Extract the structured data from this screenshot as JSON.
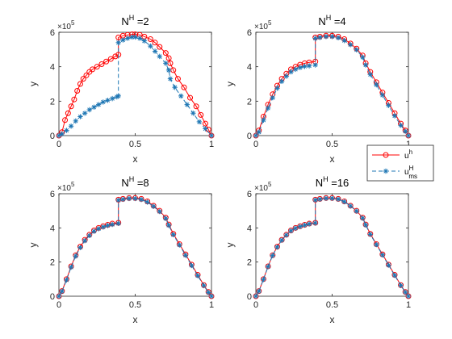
{
  "figure": {
    "exponent_base": "×10",
    "exponent_power": "5"
  },
  "legend": {
    "entries": [
      {
        "base": "u",
        "sup": "h",
        "sub": "",
        "color": "#ff0000",
        "marker": "circle",
        "line": "solid"
      },
      {
        "base": "u",
        "sup": "H",
        "sub": "ms",
        "color": "#1f77b4",
        "marker": "asterisk",
        "line": "dashed"
      }
    ]
  },
  "chart_data": [
    {
      "type": "line",
      "title": {
        "base": "N",
        "sup": "H",
        "rest": " =2"
      },
      "xlabel": "x",
      "ylabel": "y",
      "xlim": [
        0,
        1
      ],
      "ylim": [
        0,
        600000
      ],
      "xticks": [
        "0",
        "0.5",
        "1"
      ],
      "yticks": [
        "0",
        "2",
        "4",
        "6"
      ],
      "series": [
        {
          "name": "u^h",
          "color": "#ff0000",
          "x": [
            0.0,
            0.02,
            0.04,
            0.06,
            0.08,
            0.1,
            0.12,
            0.14,
            0.16,
            0.18,
            0.2,
            0.22,
            0.25,
            0.28,
            0.31,
            0.34,
            0.37,
            0.39,
            0.39,
            0.42,
            0.45,
            0.48,
            0.5,
            0.53,
            0.56,
            0.6,
            0.63,
            0.66,
            0.7,
            0.72,
            0.73,
            0.75,
            0.78,
            0.82,
            0.86,
            0.9,
            0.93,
            0.96,
            0.98,
            1.0
          ],
          "y": [
            0,
            20000,
            90000,
            130000,
            170000,
            210000,
            260000,
            300000,
            330000,
            350000,
            370000,
            385000,
            400000,
            415000,
            430000,
            445000,
            460000,
            470000,
            570000,
            580000,
            585000,
            588000,
            588000,
            585000,
            575000,
            560000,
            540000,
            515000,
            480000,
            450000,
            420000,
            380000,
            330000,
            280000,
            220000,
            170000,
            120000,
            70000,
            35000,
            0
          ]
        },
        {
          "name": "u^H_ms",
          "color": "#1f77b4",
          "x": [
            0.0,
            0.02,
            0.05,
            0.08,
            0.11,
            0.14,
            0.17,
            0.2,
            0.23,
            0.26,
            0.29,
            0.32,
            0.35,
            0.38,
            0.39,
            0.39,
            0.42,
            0.45,
            0.48,
            0.5,
            0.53,
            0.56,
            0.6,
            0.63,
            0.66,
            0.7,
            0.72,
            0.73,
            0.76,
            0.8,
            0.84,
            0.88,
            0.92,
            0.96,
            1.0
          ],
          "y": [
            0,
            10000,
            30000,
            55000,
            85000,
            110000,
            130000,
            150000,
            165000,
            180000,
            195000,
            205000,
            215000,
            225000,
            230000,
            540000,
            555000,
            565000,
            572000,
            572000,
            565000,
            550000,
            520000,
            490000,
            460000,
            420000,
            380000,
            330000,
            280000,
            230000,
            180000,
            130000,
            80000,
            40000,
            0
          ]
        }
      ]
    },
    {
      "type": "line",
      "title": {
        "base": "N",
        "sup": "H",
        "rest": " =4"
      },
      "xlabel": "x",
      "ylabel": "y",
      "xlim": [
        0,
        1
      ],
      "ylim": [
        0,
        600000
      ],
      "xticks": [
        "0",
        "0.5",
        "1"
      ],
      "yticks": [
        "0",
        "2",
        "4",
        "6"
      ],
      "series": [
        {
          "name": "u^h",
          "color": "#ff0000",
          "x": [
            0.0,
            0.02,
            0.05,
            0.08,
            0.11,
            0.14,
            0.17,
            0.2,
            0.23,
            0.26,
            0.29,
            0.32,
            0.35,
            0.39,
            0.39,
            0.42,
            0.46,
            0.5,
            0.54,
            0.58,
            0.62,
            0.66,
            0.7,
            0.72,
            0.75,
            0.79,
            0.83,
            0.87,
            0.91,
            0.95,
            0.98,
            1.0
          ],
          "y": [
            0,
            30000,
            110000,
            180000,
            240000,
            290000,
            330000,
            360000,
            385000,
            400000,
            412000,
            420000,
            425000,
            430000,
            570000,
            575000,
            580000,
            580000,
            575000,
            560000,
            535000,
            505000,
            465000,
            420000,
            370000,
            310000,
            250000,
            190000,
            130000,
            70000,
            30000,
            0
          ]
        },
        {
          "name": "u^H_ms",
          "color": "#1f77b4",
          "x": [
            0.0,
            0.02,
            0.05,
            0.08,
            0.11,
            0.14,
            0.17,
            0.2,
            0.23,
            0.26,
            0.29,
            0.32,
            0.35,
            0.39,
            0.39,
            0.42,
            0.46,
            0.5,
            0.54,
            0.58,
            0.62,
            0.66,
            0.7,
            0.72,
            0.75,
            0.79,
            0.83,
            0.87,
            0.91,
            0.95,
            0.98,
            1.0
          ],
          "y": [
            0,
            20000,
            90000,
            160000,
            220000,
            275000,
            315000,
            345000,
            370000,
            385000,
            395000,
            402000,
            405000,
            410000,
            565000,
            570000,
            575000,
            575000,
            568000,
            552000,
            528000,
            498000,
            455000,
            410000,
            355000,
            295000,
            235000,
            175000,
            115000,
            60000,
            25000,
            0
          ]
        }
      ]
    },
    {
      "type": "line",
      "title": {
        "base": "N",
        "sup": "H",
        "rest": " =8"
      },
      "xlabel": "x",
      "ylabel": "y",
      "xlim": [
        0,
        1
      ],
      "ylim": [
        0,
        600000
      ],
      "xticks": [
        "0",
        "0.5",
        "1"
      ],
      "yticks": [
        "0",
        "2",
        "4",
        "6"
      ],
      "series": [
        {
          "name": "u^h",
          "color": "#ff0000",
          "x": [
            0.0,
            0.02,
            0.05,
            0.08,
            0.11,
            0.14,
            0.17,
            0.2,
            0.23,
            0.26,
            0.29,
            0.32,
            0.35,
            0.39,
            0.39,
            0.42,
            0.46,
            0.5,
            0.54,
            0.58,
            0.62,
            0.66,
            0.7,
            0.72,
            0.75,
            0.79,
            0.83,
            0.87,
            0.91,
            0.95,
            0.98,
            1.0
          ],
          "y": [
            0,
            30000,
            100000,
            175000,
            240000,
            290000,
            330000,
            360000,
            385000,
            400000,
            410000,
            418000,
            425000,
            430000,
            565000,
            570000,
            575000,
            575000,
            570000,
            555000,
            530000,
            500000,
            460000,
            420000,
            365000,
            305000,
            245000,
            185000,
            125000,
            65000,
            25000,
            0
          ]
        },
        {
          "name": "u^H_ms",
          "color": "#1f77b4",
          "x": [
            0.0,
            0.02,
            0.05,
            0.08,
            0.11,
            0.14,
            0.17,
            0.2,
            0.23,
            0.26,
            0.29,
            0.32,
            0.35,
            0.39,
            0.39,
            0.42,
            0.46,
            0.5,
            0.54,
            0.58,
            0.62,
            0.66,
            0.7,
            0.72,
            0.75,
            0.79,
            0.83,
            0.87,
            0.91,
            0.95,
            0.98,
            1.0
          ],
          "y": [
            0,
            28000,
            95000,
            170000,
            235000,
            285000,
            325000,
            355000,
            380000,
            395000,
            405000,
            414000,
            420000,
            426000,
            562000,
            567000,
            572000,
            572000,
            566000,
            551000,
            526000,
            496000,
            455000,
            415000,
            360000,
            300000,
            240000,
            180000,
            120000,
            62000,
            22000,
            0
          ]
        }
      ]
    },
    {
      "type": "line",
      "title": {
        "base": "N",
        "sup": "H",
        "rest": " =16"
      },
      "xlabel": "x",
      "ylabel": "y",
      "xlim": [
        0,
        1
      ],
      "ylim": [
        0,
        600000
      ],
      "xticks": [
        "0",
        "0.5",
        "1"
      ],
      "yticks": [
        "0",
        "2",
        "4",
        "6"
      ],
      "series": [
        {
          "name": "u^h",
          "color": "#ff0000",
          "x": [
            0.0,
            0.02,
            0.05,
            0.08,
            0.11,
            0.14,
            0.17,
            0.2,
            0.23,
            0.26,
            0.29,
            0.32,
            0.35,
            0.39,
            0.39,
            0.42,
            0.46,
            0.5,
            0.54,
            0.58,
            0.62,
            0.66,
            0.7,
            0.72,
            0.75,
            0.79,
            0.83,
            0.87,
            0.91,
            0.95,
            0.98,
            1.0
          ],
          "y": [
            0,
            30000,
            100000,
            175000,
            240000,
            290000,
            330000,
            360000,
            385000,
            400000,
            410000,
            418000,
            425000,
            430000,
            565000,
            570000,
            575000,
            575000,
            570000,
            555000,
            530000,
            500000,
            460000,
            420000,
            365000,
            305000,
            245000,
            185000,
            125000,
            65000,
            25000,
            0
          ]
        },
        {
          "name": "u^H_ms",
          "color": "#1f77b4",
          "x": [
            0.0,
            0.02,
            0.05,
            0.08,
            0.11,
            0.14,
            0.17,
            0.2,
            0.23,
            0.26,
            0.29,
            0.32,
            0.35,
            0.39,
            0.39,
            0.42,
            0.46,
            0.5,
            0.54,
            0.58,
            0.62,
            0.66,
            0.7,
            0.72,
            0.75,
            0.79,
            0.83,
            0.87,
            0.91,
            0.95,
            0.98,
            1.0
          ],
          "y": [
            0,
            29000,
            98000,
            173000,
            238000,
            288000,
            328000,
            358000,
            383000,
            398000,
            408000,
            416000,
            423000,
            428000,
            563000,
            568000,
            573000,
            573000,
            568000,
            553000,
            528000,
            498000,
            457000,
            417000,
            362000,
            302000,
            242000,
            182000,
            122000,
            63000,
            23000,
            0
          ]
        }
      ]
    }
  ]
}
